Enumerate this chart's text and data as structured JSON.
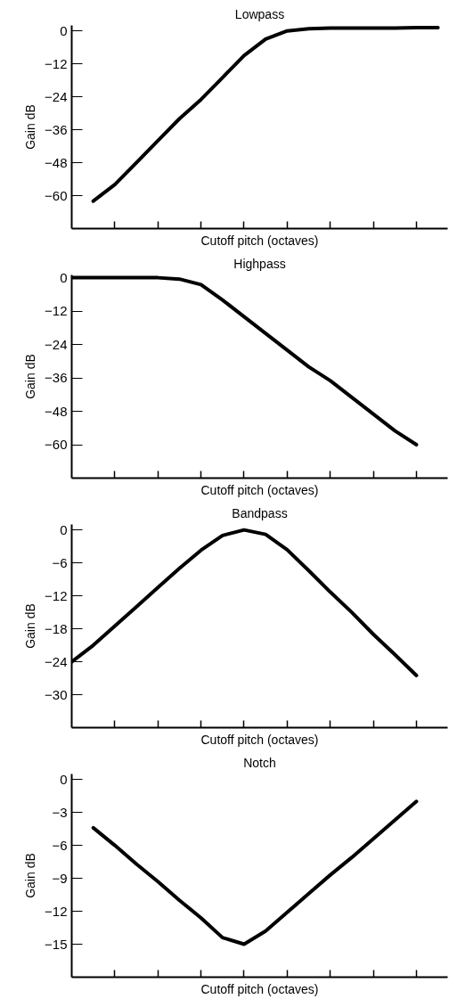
{
  "chart_data": [
    {
      "type": "line",
      "title": "Lowpass",
      "xlabel": "Cutoff pitch (octaves)",
      "ylabel": "Gain dB",
      "categories": [
        null,
        null,
        null,
        null,
        null,
        null,
        null,
        null,
        null,
        null,
        null,
        null,
        null,
        null,
        null,
        null,
        null,
        null
      ],
      "series": [
        {
          "color": "#000000",
          "values": [
            null,
            -62,
            -56,
            -48,
            -40,
            -32,
            -25,
            -17,
            -9,
            -3,
            0,
            0.8,
            1,
            1,
            1,
            1,
            1.2,
            1.2
          ]
        }
      ],
      "ylim": [
        -72,
        2
      ],
      "yticks": [
        0,
        {
          "value": -12,
          "label": "−12"
        },
        {
          "value": -24,
          "label": "−24"
        },
        {
          "value": -36,
          "label": "−36"
        },
        {
          "value": -48,
          "label": "−48"
        },
        {
          "value": -60,
          "label": "−60"
        }
      ],
      "grid": false,
      "marker": "none",
      "line_style": "solid",
      "tick_labels": "y"
    },
    {
      "type": "line",
      "title": "Highpass",
      "xlabel": "Cutoff pitch (octaves)",
      "ylabel": "Gain dB",
      "categories": [
        null,
        null,
        null,
        null,
        null,
        null,
        null,
        null,
        null,
        null,
        null,
        null,
        null,
        null,
        null,
        null,
        null,
        null
      ],
      "series": [
        {
          "color": "#000000",
          "values": [
            0,
            0,
            0,
            0,
            0,
            -0.5,
            -2.5,
            -8,
            -14,
            -20,
            -26,
            -32,
            -37,
            -43,
            -49,
            -55,
            -60,
            null
          ]
        }
      ],
      "ylim": [
        -72,
        1
      ],
      "yticks": [
        0,
        {
          "value": -12,
          "label": "−12"
        },
        {
          "value": -24,
          "label": "−24"
        },
        {
          "value": -36,
          "label": "−36"
        },
        {
          "value": -48,
          "label": "−48"
        },
        {
          "value": -60,
          "label": "−60"
        }
      ],
      "grid": false,
      "marker": "none",
      "line_style": "solid",
      "tick_labels": "y"
    },
    {
      "type": "line",
      "title": "Bandpass",
      "xlabel": "Cutoff pitch (octaves)",
      "ylabel": "Gain dB",
      "categories": [
        null,
        null,
        null,
        null,
        null,
        null,
        null,
        null,
        null,
        null,
        null,
        null,
        null,
        null,
        null,
        null,
        null,
        null
      ],
      "series": [
        {
          "color": "#000000",
          "values": [
            -24,
            -21,
            -17.5,
            -14,
            -10.5,
            -7,
            -3.7,
            -1,
            0,
            -0.8,
            -3.6,
            -7.4,
            -11.3,
            -15,
            -19,
            -22.7,
            -26.5,
            null
          ]
        }
      ],
      "ylim": [
        -36,
        1
      ],
      "yticks": [
        0,
        {
          "value": -6,
          "label": "−6"
        },
        {
          "value": -12,
          "label": "−12"
        },
        {
          "value": -18,
          "label": "−18"
        },
        {
          "value": -24,
          "label": "−24"
        },
        {
          "value": -30,
          "label": "−30"
        }
      ],
      "grid": false,
      "marker": "none",
      "line_style": "solid",
      "tick_labels": "y"
    },
    {
      "type": "line",
      "title": "Notch",
      "xlabel": "Cutoff pitch (octaves)",
      "ylabel": "Gain dB",
      "categories": [
        null,
        null,
        null,
        null,
        null,
        null,
        null,
        null,
        null,
        null,
        null,
        null,
        null,
        null,
        null,
        null,
        null,
        null
      ],
      "series": [
        {
          "color": "#000000",
          "values": [
            null,
            -4.4,
            -6,
            -7.7,
            -9.3,
            -11,
            -12.6,
            -14.4,
            -15,
            -13.8,
            -12.1,
            -10.4,
            -8.7,
            -7.1,
            -5.4,
            -3.7,
            -2,
            null
          ]
        }
      ],
      "ylim": [
        -18,
        0.5
      ],
      "yticks": [
        0,
        {
          "value": -3,
          "label": "−3"
        },
        {
          "value": -6,
          "label": "−6"
        },
        {
          "value": -9,
          "label": "−9"
        },
        {
          "value": -12,
          "label": "−12"
        },
        {
          "value": -15,
          "label": "−15"
        }
      ],
      "grid": false,
      "marker": "none",
      "line_style": "solid",
      "tick_labels": "y"
    }
  ]
}
